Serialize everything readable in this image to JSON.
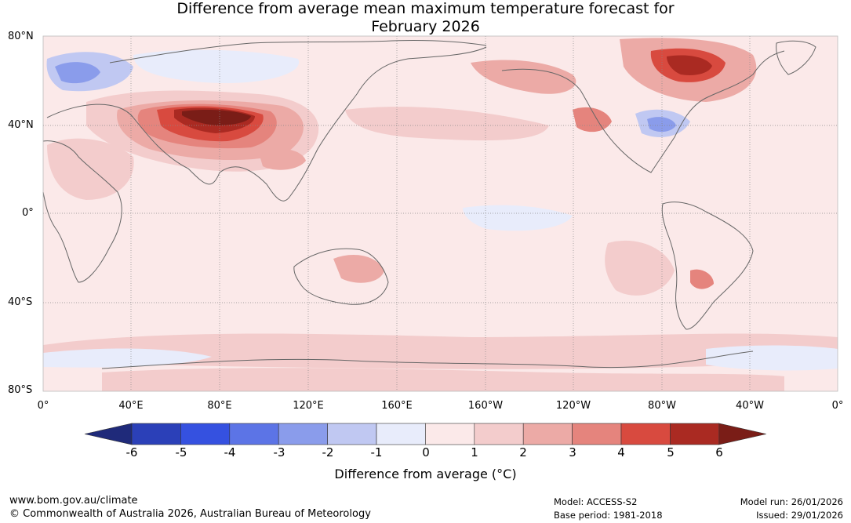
{
  "title": {
    "line1": "Difference from average mean maximum temperature forecast for",
    "line2": "February 2026"
  },
  "map": {
    "lat_labels": [
      "80°N",
      "40°N",
      "0°",
      "40°S",
      "80°S"
    ],
    "lon_labels": [
      "0°",
      "40°E",
      "80°E",
      "120°E",
      "160°E",
      "160°W",
      "120°W",
      "80°W",
      "40°W",
      "0°"
    ]
  },
  "colorbar": {
    "title": "Difference from average (°C)",
    "ticks": [
      "-6",
      "-5",
      "-4",
      "-3",
      "-2",
      "-1",
      "0",
      "1",
      "2",
      "3",
      "4",
      "5",
      "6"
    ],
    "colors": [
      "#1f2a7a",
      "#2b40b8",
      "#3551e0",
      "#5c74e6",
      "#8a9ceb",
      "#c0c8f2",
      "#e8ecfb",
      "#fbe9e9",
      "#f3cccc",
      "#ecaaa6",
      "#e5847d",
      "#d84a3f",
      "#aa2a22",
      "#7a1d17"
    ]
  },
  "footer": {
    "website": "www.bom.gov.au/climate",
    "copyright": "© Commonwealth of Australia 2026, Australian Bureau of Meteorology",
    "model": "Model: ACCESS-S2",
    "base_period": "Base period: 1981-2018",
    "model_run": "Model run: 26/01/2026",
    "issued": "Issued: 29/01/2026"
  }
}
